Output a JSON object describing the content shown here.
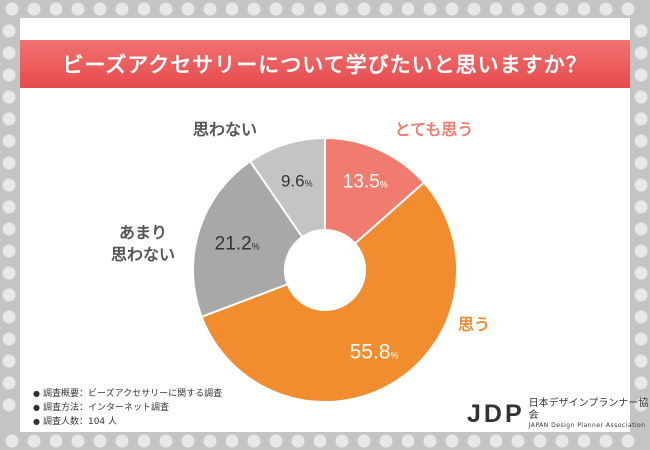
{
  "header": {
    "title": "ビーズアクセサリーについて学びたいと思いますか？"
  },
  "chart_data": {
    "type": "pie",
    "title": "ビーズアクセサリーについて学びたいと思いますか？",
    "unit": "%",
    "categories": [
      "とても思う",
      "思う",
      "あまり思わない",
      "思わない"
    ],
    "values": [
      13.5,
      55.8,
      21.2,
      9.6
    ],
    "value_labels": [
      "13.5",
      "55.8",
      "21.2",
      "9.6"
    ],
    "label_lines": [
      [
        "とても思う"
      ],
      [
        "思う"
      ],
      [
        "あまり",
        "思わない"
      ],
      [
        "思わない"
      ]
    ],
    "colors": [
      "#ef7c6e",
      "#f18c2f",
      "#a8a8a8",
      "#c4c4c4"
    ]
  },
  "notes": [
    "調査概要：ビーズアクセサリーに関する調査",
    "調査方法：インターネット調査",
    "調査人数：104 人"
  ],
  "logo": {
    "mark": "JDP",
    "name": "日本デザインプランナー協会",
    "english": "JAPAN Design Planner Association"
  }
}
